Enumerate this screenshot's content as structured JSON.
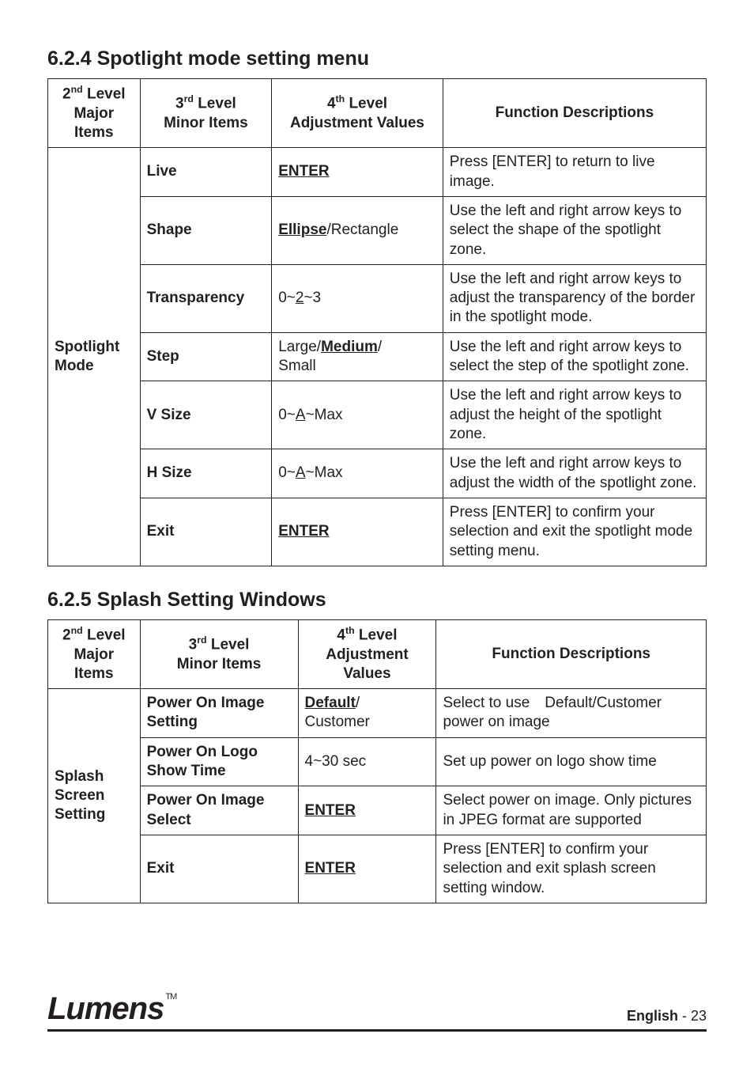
{
  "sections": [
    {
      "num": "6.2.4",
      "title": "Spotlight mode setting menu",
      "columns": {
        "c1_pre": "2",
        "c1_sup": "nd",
        "c1_rest": " Level Major Items",
        "c2_pre": "3",
        "c2_sup": "rd",
        "c2_rest": " Level Minor Items",
        "c3_pre": "4",
        "c3_sup": "th",
        "c3_rest": " Level Adjustment Values",
        "c4": "Function Descriptions"
      },
      "major": "Spotlight Mode",
      "rows": [
        {
          "minor": "Live",
          "adj_html": "<span class=\"bold uline\">ENTER</span>",
          "desc": "Press [ENTER] to return to live image."
        },
        {
          "minor": "Shape",
          "adj_html": "<span class=\"bold uline\">Ellipse</span>/Rectangle",
          "desc": "Use the left and right arrow keys to select the shape of the spotlight zone."
        },
        {
          "minor": "Transparency",
          "adj_html": "0~<span class=\"uline\">2</span>~3",
          "desc": "Use the left and right arrow keys to adjust the transparency of the border in the spotlight mode."
        },
        {
          "minor": "Step",
          "adj_html": "Large/<span class=\"bold uline\">Medium</span>/<br>Small",
          "desc": "Use the left and right arrow keys to select the step of the spotlight zone."
        },
        {
          "minor": "V Size",
          "adj_html": "0~<span class=\"uline\">A</span>~Max",
          "desc": "Use the left and right arrow keys to adjust the height of the spotlight zone."
        },
        {
          "minor": "H Size",
          "adj_html": "0~<span class=\"uline\">A</span>~Max",
          "desc": "Use the left and right arrow keys to adjust the width of the spotlight zone."
        },
        {
          "minor": "Exit",
          "adj_html": "<span class=\"bold uline\">ENTER</span>",
          "desc": "Press [ENTER] to confirm your selection and exit the spotlight mode setting menu."
        }
      ],
      "col_widths": [
        "14%",
        "20%",
        "26%",
        "40%"
      ]
    },
    {
      "num": "6.2.5",
      "title": "Splash Setting Windows",
      "columns": {
        "c1_pre": "2",
        "c1_sup": "nd",
        "c1_rest": " Level Major Items",
        "c2_pre": "3",
        "c2_sup": "rd",
        "c2_rest": " Level Minor Items",
        "c3_pre": "4",
        "c3_sup": "th",
        "c3_rest": " Level Adjustment Values",
        "c4": "Function Descriptions"
      },
      "major": "Splash Screen Setting",
      "rows": [
        {
          "minor": "Power On Image Setting",
          "adj_html": "<span class=\"bold uline\">Default</span>/<br>Customer",
          "desc": "Select to use Default/Customer power on image"
        },
        {
          "minor": "Power On Logo Show Time",
          "adj_html": "4~30 sec",
          "desc": "Set up power on logo show time"
        },
        {
          "minor": "Power On Image Select",
          "adj_html": "<span class=\"bold uline\">ENTER</span>",
          "desc": "Select power on image. Only pictures in JPEG format are supported"
        },
        {
          "minor": "Exit",
          "adj_html": "<span class=\"bold uline\">ENTER</span>",
          "desc": "Press [ENTER] to confirm your selection and exit splash screen setting window."
        }
      ],
      "col_widths": [
        "14%",
        "24%",
        "21%",
        "41%"
      ]
    }
  ],
  "footer": {
    "brand": "Lumens",
    "tm": "TM",
    "lang": "English",
    "sep": " - ",
    "page": "23"
  }
}
